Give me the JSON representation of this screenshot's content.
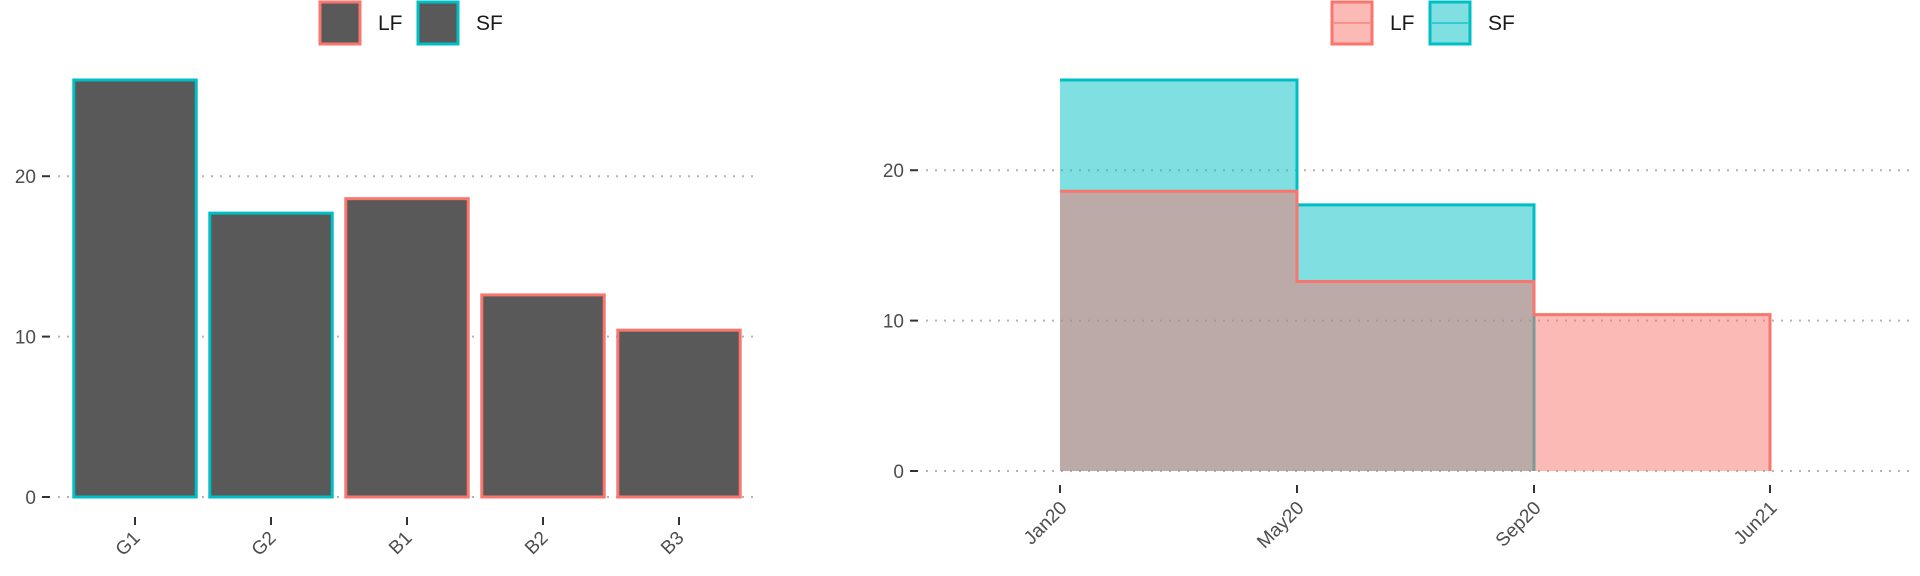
{
  "chart_data": [
    {
      "type": "bar",
      "categories": [
        "G1",
        "G2",
        "B1",
        "B2",
        "B3"
      ],
      "values": [
        26,
        17.7,
        18.6,
        12.6,
        10.4
      ],
      "bar_outline_group": [
        "SF",
        "SF",
        "LF",
        "LF",
        "LF"
      ],
      "ylim": [
        0,
        27.5
      ],
      "yticks": [
        0,
        10,
        20
      ],
      "legend": {
        "position": "top",
        "entries": [
          {
            "label": "LF",
            "color": "#F8766D"
          },
          {
            "label": "SF",
            "color": "#00BFC4"
          }
        ]
      },
      "fill_color": "#595959",
      "grid": "horizontal dotted"
    },
    {
      "type": "area",
      "step": true,
      "x_ticks": [
        "Jan20",
        "May20",
        "Sep20",
        "Jun21"
      ],
      "series": [
        {
          "name": "LF",
          "color": "#F8766D",
          "x": [
            "Jan20",
            "May20",
            "Sep20",
            "Jun21"
          ],
          "y": [
            18.6,
            12.6,
            10.4,
            10.4
          ]
        },
        {
          "name": "SF",
          "color": "#00BFC4",
          "x": [
            "Jan20",
            "May20",
            "Sep20"
          ],
          "y": [
            26,
            17.7,
            17.7
          ]
        }
      ],
      "ylim": [
        0,
        27.5
      ],
      "yticks": [
        0,
        10,
        20
      ],
      "legend": {
        "position": "top",
        "entries": [
          {
            "label": "LF",
            "color": "#F8766D"
          },
          {
            "label": "SF",
            "color": "#00BFC4"
          }
        ]
      },
      "grid": "horizontal dotted"
    }
  ]
}
